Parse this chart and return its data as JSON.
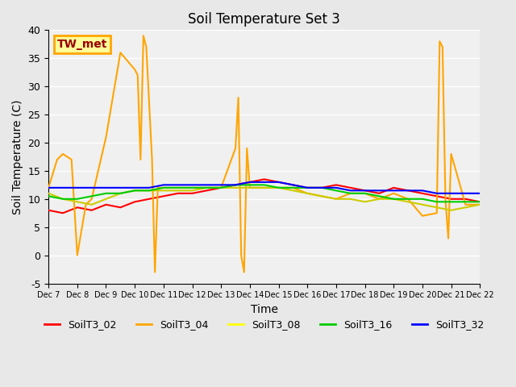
{
  "title": "Soil Temperature Set 3",
  "xlabel": "Time",
  "ylabel": "Soil Temperature (C)",
  "ylim": [
    -5,
    40
  ],
  "annotation_text": "TW_met",
  "annotation_box_color": "#FFFF99",
  "annotation_text_color": "#990000",
  "background_color": "#E8E8E8",
  "plot_bg_color": "#F0F0F0",
  "legend_labels": [
    "SoilT3_02",
    "SoilT3_04",
    "SoilT3_08",
    "SoilT3_16",
    "SoilT3_32"
  ],
  "legend_colors": [
    "red",
    "orange",
    "yellow",
    "#00CC00",
    "blue"
  ],
  "xtick_labels": [
    "Dec 7",
    "Dec 8",
    "Dec 9",
    "Dec 10",
    "Dec 11",
    "Dec 12",
    "Dec 13",
    "Dec 14",
    "Dec 15",
    "Dec 16",
    "Dec 17",
    "Dec 18",
    "Dec 19",
    "Dec 20",
    "Dec 21",
    "Dec 22"
  ],
  "series": {
    "SoilT3_02": {
      "color": "red",
      "x": [
        0,
        0.5,
        1,
        1.5,
        2,
        2.5,
        3,
        3.5,
        4,
        4.5,
        5,
        5.5,
        6,
        6.5,
        7,
        7.5,
        8,
        8.5,
        9,
        9.5,
        10,
        10.5,
        11,
        11.5,
        12,
        12.5,
        13,
        13.5,
        14,
        14.5,
        15
      ],
      "y": [
        8,
        7.5,
        8.5,
        8,
        9,
        8.5,
        9.5,
        10,
        10.5,
        11,
        11,
        11.5,
        12,
        12.5,
        13,
        13.5,
        13,
        12.5,
        12,
        12,
        12.5,
        12,
        11.5,
        11,
        12,
        11.5,
        11,
        10.5,
        10,
        10,
        9.5
      ]
    },
    "SoilT3_04": {
      "color": "orange",
      "x": [
        0,
        0.3,
        0.5,
        0.8,
        1,
        1.3,
        1.5,
        2,
        2.5,
        3,
        3.1,
        3.2,
        3.3,
        3.4,
        3.5,
        3.6,
        3.7,
        3.8,
        4,
        4.5,
        5,
        5.5,
        6,
        6.5,
        6.6,
        6.7,
        6.8,
        6.9,
        7,
        7.5,
        8,
        8.5,
        9,
        9.5,
        10,
        10.5,
        11,
        11.5,
        12,
        12.5,
        13,
        13.5,
        13.6,
        13.7,
        13.8,
        13.9,
        14,
        14.5,
        15
      ],
      "y": [
        12,
        17,
        18,
        17,
        0,
        9,
        10,
        21,
        36,
        33,
        32,
        17,
        39,
        37,
        27,
        17,
        -3,
        12,
        12,
        12,
        12,
        12,
        12,
        19,
        28,
        0,
        -3,
        19,
        12,
        12,
        12,
        12,
        11,
        10.5,
        10,
        11,
        11,
        10,
        11,
        10,
        7,
        7.5,
        38,
        37,
        10,
        3,
        18,
        9,
        9
      ]
    },
    "SoilT3_08": {
      "color": "#CCCC00",
      "x": [
        0,
        0.5,
        1,
        1.5,
        2,
        2.5,
        3,
        3.5,
        4,
        4.5,
        5,
        5.5,
        6,
        6.5,
        7,
        7.5,
        8,
        8.5,
        9,
        9.5,
        10,
        10.5,
        11,
        11.5,
        12,
        12.5,
        13,
        13.5,
        14,
        14.5,
        15
      ],
      "y": [
        11,
        10,
        9.5,
        9,
        10,
        11,
        11.5,
        11.5,
        11.5,
        11.5,
        11.5,
        12,
        12,
        12,
        12,
        12,
        12,
        11.5,
        11,
        10.5,
        10,
        10,
        9.5,
        10,
        10,
        9.5,
        9,
        8.5,
        8,
        8.5,
        9
      ]
    },
    "SoilT3_16": {
      "color": "#00CC00",
      "x": [
        0,
        0.5,
        1,
        1.5,
        2,
        2.5,
        3,
        3.5,
        4,
        4.5,
        5,
        5.5,
        6,
        6.5,
        7,
        7.5,
        8,
        8.5,
        9,
        9.5,
        10,
        10.5,
        11,
        11.5,
        12,
        12.5,
        13,
        13.5,
        14,
        14.5,
        15
      ],
      "y": [
        10.5,
        10,
        10,
        10.5,
        11,
        11,
        11.5,
        11.5,
        12,
        12,
        12,
        12,
        12,
        12.5,
        12.5,
        12.5,
        12,
        12,
        12,
        12,
        11.5,
        11,
        11,
        10.5,
        10,
        10,
        10,
        9.5,
        9.5,
        9.5,
        9.5
      ]
    },
    "SoilT3_32": {
      "color": "blue",
      "x": [
        0,
        0.5,
        1,
        1.5,
        2,
        2.5,
        3,
        3.5,
        4,
        4.5,
        5,
        5.5,
        6,
        6.5,
        7,
        7.5,
        8,
        8.5,
        9,
        9.5,
        10,
        10.5,
        11,
        11.5,
        12,
        12.5,
        13,
        13.5,
        14,
        14.5,
        15
      ],
      "y": [
        12,
        12,
        12,
        12,
        12,
        12,
        12,
        12,
        12.5,
        12.5,
        12.5,
        12.5,
        12.5,
        12.5,
        13,
        13,
        13,
        12.5,
        12,
        12,
        12,
        11.5,
        11.5,
        11.5,
        11.5,
        11.5,
        11.5,
        11,
        11,
        11,
        11
      ]
    }
  }
}
